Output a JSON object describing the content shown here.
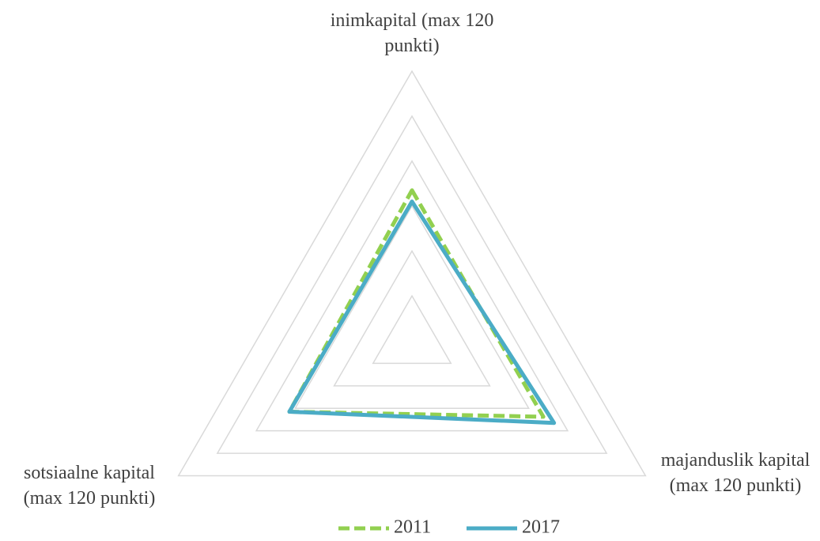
{
  "chart_data": {
    "type": "radar",
    "categories": [
      "inimkapital (max 120 punkti)",
      "majanduslik kapital (max 120 punkti)",
      "sotsiaalne kapital (max 120 punkti)"
    ],
    "series": [
      {
        "name": "2011",
        "color": "#92d050",
        "dashed": true,
        "values": [
          67,
          67.5,
          63
        ]
      },
      {
        "name": "2017",
        "color": "#4bacc6",
        "dashed": false,
        "values": [
          62,
          73,
          63
        ]
      }
    ],
    "rlim": [
      0,
      120
    ],
    "rticks": [
      20,
      40,
      60,
      80,
      100,
      120
    ],
    "grid": true,
    "legend": "bottom"
  }
}
